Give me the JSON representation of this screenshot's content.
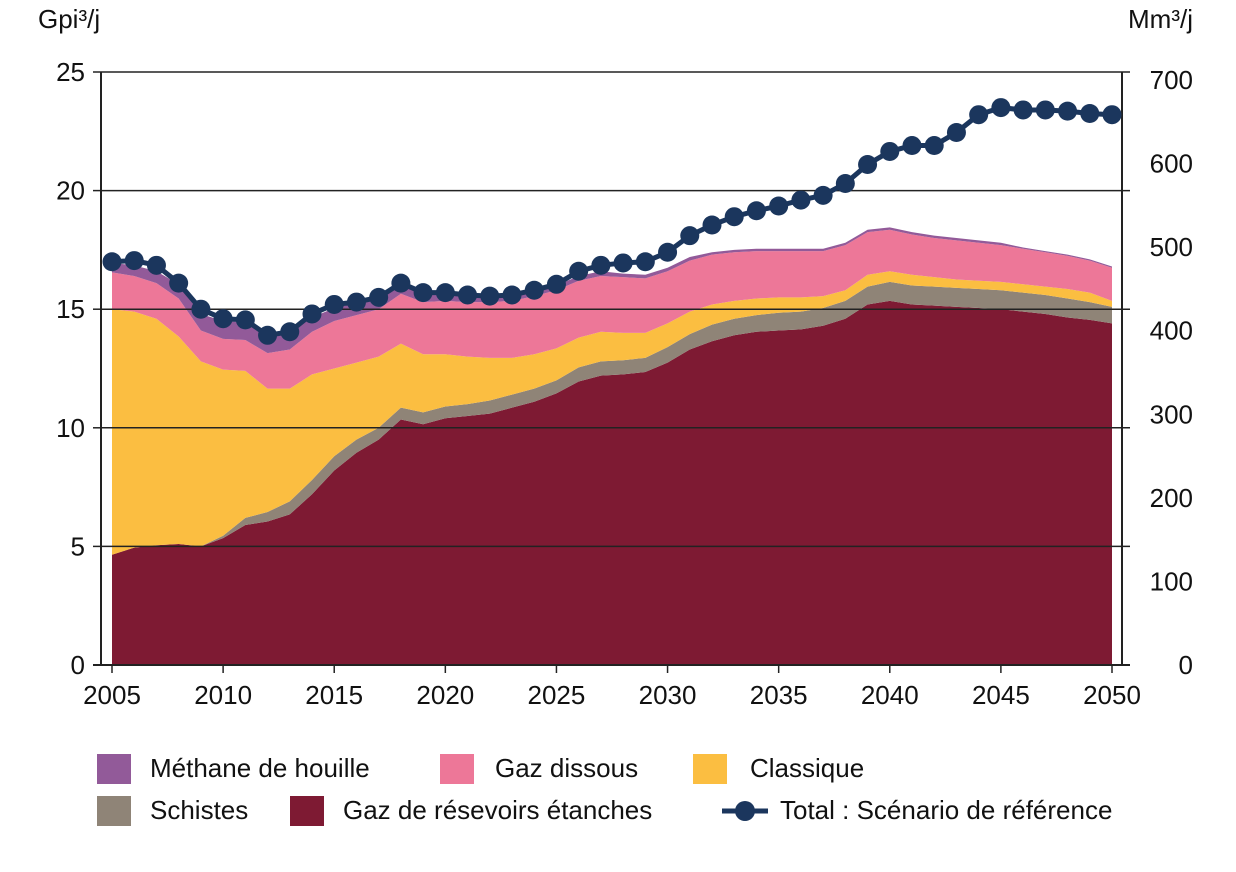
{
  "chart_data": {
    "type": "area",
    "stacked": true,
    "y_left_label": "Gpi³/j",
    "y_right_label": "Mm³/j",
    "ylim": [
      0,
      25
    ],
    "y_right_lim": [
      0,
      700
    ],
    "y_ticks": [
      "0",
      "5",
      "10",
      "15",
      "20",
      "25"
    ],
    "y_right_ticks": [
      "0",
      "100",
      "200",
      "300",
      "400",
      "500",
      "600",
      "700"
    ],
    "x_ticks": [
      "2005",
      "2010",
      "2015",
      "2020",
      "2025",
      "2030",
      "2035",
      "2040",
      "2045",
      "2050"
    ],
    "grid": "horizontal",
    "legend_position": "bottom",
    "x": [
      2005,
      2006,
      2007,
      2008,
      2009,
      2010,
      2011,
      2012,
      2013,
      2014,
      2015,
      2016,
      2017,
      2018,
      2019,
      2020,
      2021,
      2022,
      2023,
      2024,
      2025,
      2026,
      2027,
      2028,
      2029,
      2030,
      2031,
      2032,
      2033,
      2034,
      2035,
      2036,
      2037,
      2038,
      2039,
      2040,
      2041,
      2042,
      2043,
      2044,
      2045,
      2046,
      2047,
      2048,
      2049,
      2050
    ],
    "series": [
      {
        "name": "Gaz de résevoirs étanches",
        "color": "#7e1a33",
        "values": [
          4.65,
          4.95,
          5.05,
          5.1,
          5.0,
          5.35,
          5.9,
          6.05,
          6.35,
          7.2,
          8.2,
          8.95,
          9.5,
          10.35,
          10.15,
          10.4,
          10.5,
          10.6,
          10.85,
          11.1,
          11.45,
          11.95,
          12.2,
          12.25,
          12.35,
          12.75,
          13.3,
          13.65,
          13.9,
          14.05,
          14.1,
          14.15,
          14.3,
          14.6,
          15.2,
          15.35,
          15.2,
          15.15,
          15.1,
          15.05,
          15.0,
          14.9,
          14.8,
          14.65,
          14.55,
          14.4
        ]
      },
      {
        "name": "Schistes",
        "color": "#8f8477",
        "values": [
          0,
          0,
          0,
          0,
          0,
          0.1,
          0.3,
          0.4,
          0.55,
          0.6,
          0.6,
          0.55,
          0.5,
          0.5,
          0.5,
          0.5,
          0.5,
          0.55,
          0.55,
          0.55,
          0.55,
          0.6,
          0.6,
          0.6,
          0.6,
          0.65,
          0.65,
          0.7,
          0.7,
          0.7,
          0.75,
          0.75,
          0.75,
          0.75,
          0.75,
          0.8,
          0.8,
          0.8,
          0.8,
          0.8,
          0.8,
          0.8,
          0.8,
          0.8,
          0.75,
          0.7
        ]
      },
      {
        "name": "Classique",
        "color": "#fbbe41",
        "values": [
          10.35,
          9.95,
          9.55,
          8.75,
          7.8,
          7.0,
          6.2,
          5.2,
          4.75,
          4.45,
          3.7,
          3.25,
          3.0,
          2.7,
          2.45,
          2.2,
          2.0,
          1.8,
          1.55,
          1.45,
          1.35,
          1.25,
          1.25,
          1.15,
          1.05,
          1.0,
          0.95,
          0.85,
          0.75,
          0.7,
          0.65,
          0.6,
          0.5,
          0.45,
          0.5,
          0.45,
          0.45,
          0.4,
          0.35,
          0.35,
          0.35,
          0.35,
          0.35,
          0.4,
          0.4,
          0.25
        ]
      },
      {
        "name": "Gaz dissous",
        "color": "#ed7798",
        "values": [
          1.55,
          1.5,
          1.5,
          1.6,
          1.3,
          1.3,
          1.3,
          1.5,
          1.65,
          1.8,
          2.0,
          2.0,
          2.0,
          2.1,
          2.2,
          2.25,
          2.3,
          2.35,
          2.4,
          2.45,
          2.45,
          2.4,
          2.35,
          2.35,
          2.3,
          2.2,
          2.15,
          2.1,
          2.05,
          2.0,
          1.95,
          1.95,
          1.9,
          1.9,
          1.8,
          1.75,
          1.7,
          1.65,
          1.65,
          1.6,
          1.55,
          1.5,
          1.45,
          1.4,
          1.35,
          1.4
        ]
      },
      {
        "name": "Méthane de houille",
        "color": "#925a99",
        "values": [
          0.4,
          0.45,
          0.5,
          0.6,
          0.7,
          0.75,
          0.75,
          0.7,
          0.7,
          0.6,
          0.55,
          0.5,
          0.45,
          0.4,
          0.35,
          0.3,
          0.3,
          0.25,
          0.25,
          0.2,
          0.2,
          0.2,
          0.2,
          0.15,
          0.15,
          0.15,
          0.15,
          0.1,
          0.1,
          0.1,
          0.1,
          0.1,
          0.1,
          0.1,
          0.1,
          0.1,
          0.1,
          0.1,
          0.1,
          0.1,
          0.1,
          0.05,
          0.05,
          0.05,
          0.05,
          0.05
        ]
      }
    ],
    "line_series": {
      "name": "Total : Scénario de référence",
      "color": "#1b365d",
      "values": [
        17.0,
        17.05,
        16.85,
        16.1,
        15.0,
        14.6,
        14.55,
        13.9,
        14.05,
        14.8,
        15.2,
        15.3,
        15.5,
        16.1,
        15.7,
        15.7,
        15.6,
        15.55,
        15.6,
        15.8,
        16.05,
        16.6,
        16.85,
        16.95,
        17.0,
        17.4,
        18.1,
        18.55,
        18.9,
        19.15,
        19.35,
        19.6,
        19.8,
        20.3,
        21.1,
        21.65,
        21.9,
        21.9,
        22.45,
        23.2,
        23.5,
        23.4,
        23.4,
        23.35,
        23.25,
        23.2
      ]
    }
  },
  "legend": {
    "methane": "Méthane de houille",
    "dissous": "Gaz dissous",
    "classique": "Classique",
    "schistes": "Schistes",
    "etanches": "Gaz de résevoirs étanches",
    "total": "Total : Scénario de référence"
  }
}
